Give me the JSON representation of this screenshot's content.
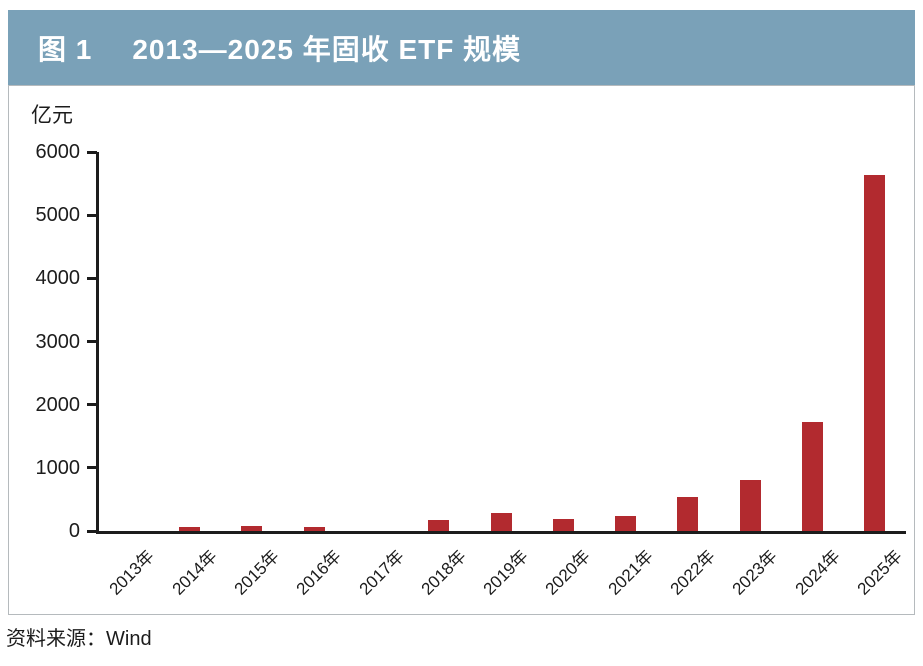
{
  "figure": {
    "label": "图 1",
    "title": "2013—2025 年固收 ETF 规模"
  },
  "source_note": "资料来源：Wind",
  "colors": {
    "title_bar_bg": "#7aa1b8",
    "title_text": "#ffffff",
    "bar": "#b22a2f",
    "axis": "#1c1c1c",
    "box_border": "#b5babd"
  },
  "chart_data": {
    "type": "bar",
    "title": "图 1 2013—2025 年固收 ETF 规模",
    "categories": [
      "2013年",
      "2014年",
      "2015年",
      "2016年",
      "2017年",
      "2018年",
      "2019年",
      "2020年",
      "2021年",
      "2022年",
      "2023年",
      "2024年",
      "2025年"
    ],
    "values": [
      0,
      70,
      75,
      70,
      0,
      170,
      290,
      190,
      240,
      540,
      800,
      1720,
      5630
    ],
    "xlabel": "",
    "ylabel": "亿元",
    "ylim": [
      0,
      6000
    ],
    "yticks": [
      0,
      1000,
      2000,
      3000,
      4000,
      5000,
      6000
    ],
    "grid": false,
    "legend": null,
    "bar_color": "#b22a2f"
  }
}
